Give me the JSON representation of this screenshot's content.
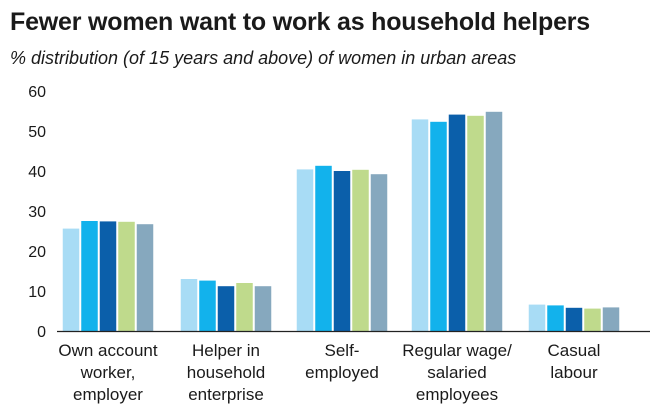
{
  "header": {
    "title": "Fewer women want to work as household helpers",
    "subtitle": "% distribution (of 15 years and above) of women in urban areas"
  },
  "chart_data": {
    "type": "bar",
    "title": "Fewer women want to work as household helpers",
    "subtitle": "% distribution (of 15 years and above) of women in urban areas",
    "xlabel": "",
    "ylabel": "",
    "ylim": [
      0,
      60
    ],
    "yticks": [
      0,
      10,
      20,
      30,
      40,
      50,
      60
    ],
    "grid": false,
    "legend": "none",
    "categories": [
      [
        "Own account",
        "worker,",
        "employer"
      ],
      [
        "Helper in",
        "household",
        "enterprise"
      ],
      [
        "Self-",
        "employed"
      ],
      [
        "Regular wage/",
        "salaried",
        "employees"
      ],
      [
        "Casual",
        "labour"
      ]
    ],
    "series": [
      {
        "color": "#a8dcf5",
        "values": [
          25.6,
          13.0,
          40.4,
          52.9,
          6.6
        ]
      },
      {
        "color": "#12b2ec",
        "values": [
          27.5,
          12.6,
          41.3,
          52.3,
          6.4
        ]
      },
      {
        "color": "#0b5faa",
        "values": [
          27.4,
          11.2,
          40.0,
          54.1,
          5.8
        ]
      },
      {
        "color": "#bfda8c",
        "values": [
          27.3,
          12.0,
          40.3,
          53.8,
          5.6
        ]
      },
      {
        "color": "#86a8be",
        "values": [
          26.7,
          11.2,
          39.2,
          54.8,
          5.9
        ]
      }
    ]
  }
}
